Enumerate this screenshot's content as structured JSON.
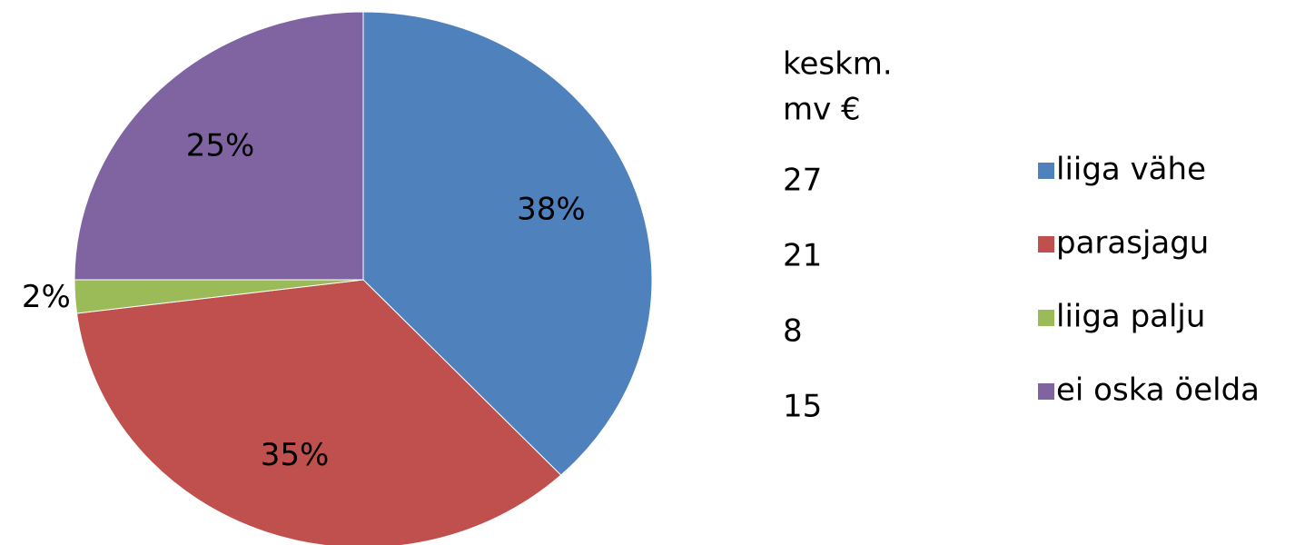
{
  "chart_data": {
    "type": "pie",
    "categories": [
      "liiga vähe",
      "parasjagu",
      "liiga palju",
      "ei oska öelda"
    ],
    "values": [
      38,
      35,
      2,
      25
    ],
    "value_labels": [
      "38%",
      "35%",
      "2%",
      "25%"
    ],
    "colors": [
      "#4f81bd",
      "#c0504d",
      "#9bbb59",
      "#8064a2"
    ],
    "legend": "right",
    "side_table": {
      "header": [
        "keskm.",
        "mv €"
      ],
      "values": [
        27,
        21,
        8,
        15
      ]
    }
  }
}
